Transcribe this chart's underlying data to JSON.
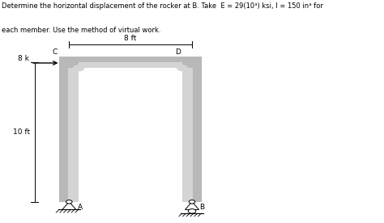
{
  "title_line1": "Determine the horizontal displacement of the rocker at B. Take  E = 29(10³) ksi, I = 150 in⁴ for",
  "title_line2": "each member. Use the method of virtual work.",
  "background_color": "#ffffff",
  "text_color": "#000000",
  "frame_color_outer": "#b8b8b8",
  "frame_color_inner": "#d4d4d4",
  "label_C": "C",
  "label_D": "D",
  "label_A": "A",
  "label_B": "B",
  "label_8ft": "8 ft",
  "label_10ft": "10 ft",
  "label_8k": "8 k",
  "xl": 0.18,
  "xr": 0.5,
  "yb": 0.095,
  "yt": 0.72,
  "th": 0.025,
  "title_fs": 6.0,
  "label_fs": 6.5
}
